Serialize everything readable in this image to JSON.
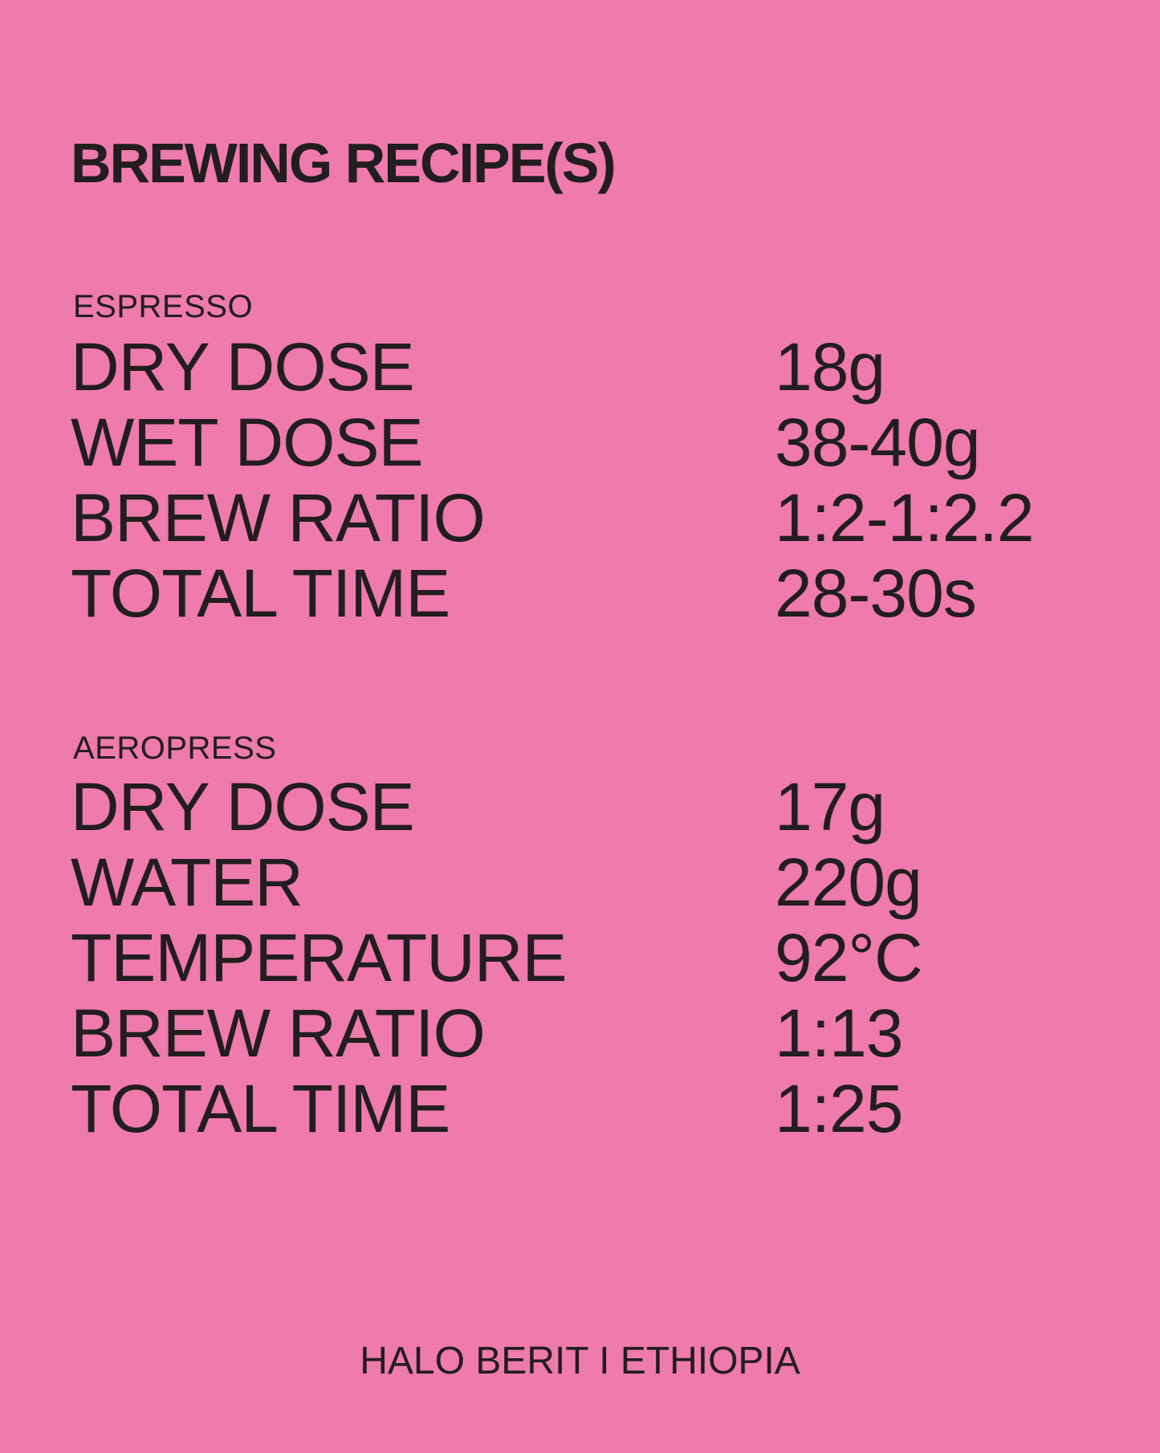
{
  "page": {
    "background_color": "#EF7AAC",
    "text_color": "#221D1F"
  },
  "title": "BREWING RECIPE(S)",
  "sections": [
    {
      "name": "ESPRESSO",
      "rows": [
        {
          "label": "DRY DOSE",
          "value": "18g"
        },
        {
          "label": "WET DOSE",
          "value": "38-40g"
        },
        {
          "label": "BREW RATIO",
          "value": "1:2-1:2.2"
        },
        {
          "label": "TOTAL TIME",
          "value": "28-30s"
        }
      ]
    },
    {
      "name": "AEROPRESS",
      "rows": [
        {
          "label": "DRY DOSE",
          "value": "17g"
        },
        {
          "label": "WATER",
          "value": "220g"
        },
        {
          "label": "TEMPERATURE",
          "value": "92°C"
        },
        {
          "label": "BREW RATIO",
          "value": "1:13"
        },
        {
          "label": "TOTAL TIME",
          "value": "1:25"
        }
      ]
    }
  ],
  "footer": "HALO BERIT I ETHIOPIA"
}
